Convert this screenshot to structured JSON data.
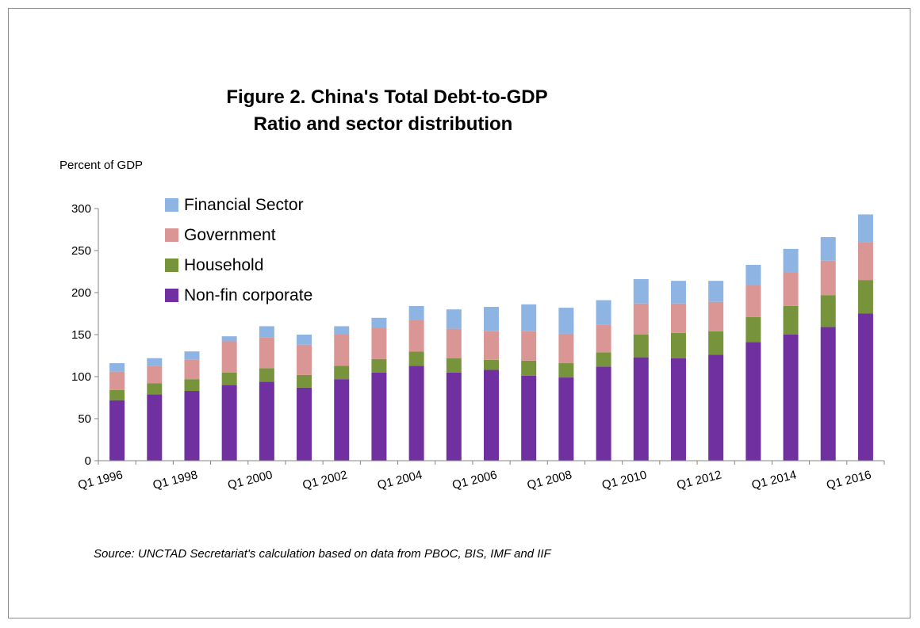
{
  "chart_data": {
    "type": "bar",
    "stacked": true,
    "title": [
      "Figure 2. China's  Total Debt-to-GDP",
      "Ratio and sector distribution"
    ],
    "ylabel": "Percent of GDP",
    "xlabel": "",
    "ylim": [
      0,
      300
    ],
    "yticks": [
      0,
      50,
      100,
      150,
      200,
      250,
      300
    ],
    "grid": false,
    "legend_position": "top-left",
    "source": "Source: UNCTAD Secretariat's calculation based on data from PBOC, BIS, IMF and IIF",
    "categories": [
      "Q1 1996",
      "Q1 1997",
      "Q1 1998",
      "Q1 1999",
      "Q1 2000",
      "Q1 2001",
      "Q1 2002",
      "Q1 2003",
      "Q1 2004",
      "Q1 2005",
      "Q1 2006",
      "Q1 2007",
      "Q1 2008",
      "Q1 2009",
      "Q1 2010",
      "Q1 2011",
      "Q1 2012",
      "Q1 2013",
      "Q1 2014",
      "Q1 2015",
      "Q1 2016"
    ],
    "tick_labels": [
      "Q1 1996",
      "Q1 1998",
      "Q1 2000",
      "Q1 2002",
      "Q1 2004",
      "Q1 2006",
      "Q1 2008",
      "Q1 2010",
      "Q1 2012",
      "Q1 2014",
      "Q1 2016"
    ],
    "legend_order": [
      "Financial Sector",
      "Government",
      "Household",
      "Non-fin corporate"
    ],
    "series": [
      {
        "name": "Non-fin corporate",
        "color": "#7030a0",
        "values": [
          72,
          79,
          83,
          90,
          94,
          87,
          97,
          105,
          113,
          105,
          108,
          101,
          99,
          112,
          123,
          122,
          126,
          141,
          150,
          159,
          175
        ]
      },
      {
        "name": "Household",
        "color": "#77933c",
        "values": [
          12,
          13,
          14,
          15,
          16,
          15,
          16,
          16,
          17,
          17,
          12,
          18,
          17,
          17,
          27,
          30,
          28,
          30,
          34,
          38,
          40
        ]
      },
      {
        "name": "Government",
        "color": "#d99694",
        "values": [
          22,
          21,
          23,
          37,
          37,
          36,
          37,
          37,
          37,
          35,
          34,
          35,
          35,
          33,
          37,
          35,
          35,
          38,
          40,
          41,
          45
        ]
      },
      {
        "name": "Financial Sector",
        "color": "#8eb4e3",
        "values": [
          10,
          9,
          10,
          6,
          13,
          12,
          10,
          12,
          17,
          23,
          29,
          32,
          31,
          29,
          29,
          27,
          25,
          24,
          28,
          28,
          33
        ]
      }
    ]
  }
}
